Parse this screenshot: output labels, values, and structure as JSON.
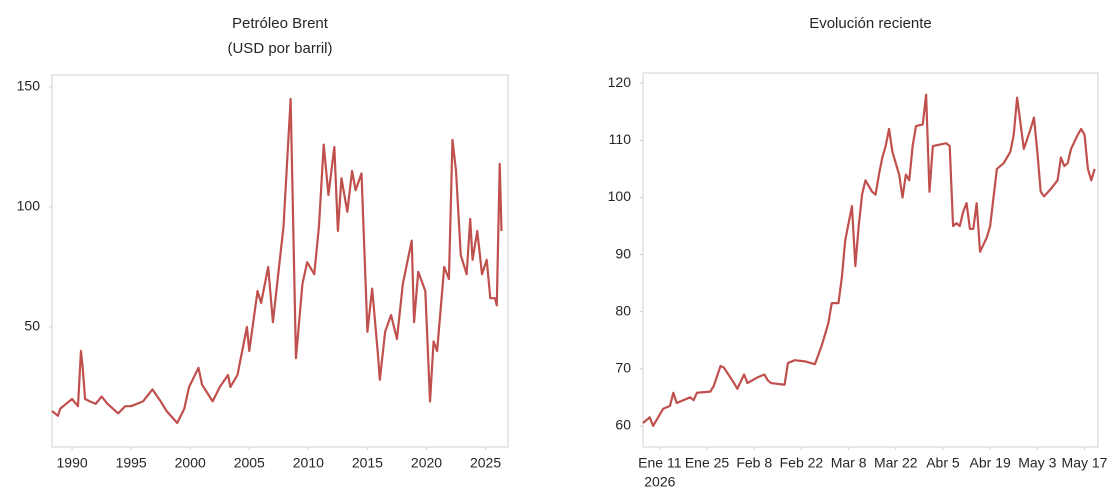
{
  "chart_data": [
    {
      "type": "line",
      "title": [
        "Petróleo Brent",
        "(USD por barril)"
      ],
      "x": [
        1988.3,
        1988.8,
        1989.0,
        1989.5,
        1990.0,
        1990.5,
        1990.75,
        1990.9,
        1991.1,
        1991.5,
        1992.0,
        1992.5,
        1993.0,
        1993.9,
        1994.5,
        1995.0,
        1996.0,
        1996.8,
        1997.5,
        1998.0,
        1998.9,
        1999.5,
        1999.9,
        2000.7,
        2001.0,
        2001.9,
        2002.5,
        2003.2,
        2003.4,
        2004.0,
        2004.8,
        2005.0,
        2005.7,
        2006.0,
        2006.6,
        2007.0,
        2007.9,
        2008.5,
        2008.95,
        2009.5,
        2009.9,
        2010.5,
        2010.9,
        2011.3,
        2011.7,
        2012.2,
        2012.5,
        2012.8,
        2013.3,
        2013.7,
        2014.0,
        2014.5,
        2015.0,
        2015.4,
        2015.9,
        2016.05,
        2016.5,
        2017.0,
        2017.5,
        2018.0,
        2018.75,
        2018.95,
        2019.3,
        2019.9,
        2020.3,
        2020.6,
        2020.9,
        2021.5,
        2021.9,
        2022.2,
        2022.5,
        2022.9,
        2023.4,
        2023.7,
        2023.9,
        2024.3,
        2024.7,
        2025.1,
        2025.4,
        2025.8,
        2025.95,
        2026.2,
        2026.35
      ],
      "series": [
        {
          "color": "#c0504d",
          "values": [
            15,
            13,
            16,
            18,
            20,
            17,
            40,
            33,
            20,
            19,
            18,
            21,
            18,
            14,
            17,
            17,
            19,
            24,
            19,
            15,
            10,
            16,
            25,
            33,
            26,
            19,
            25,
            30,
            25,
            30,
            50,
            40,
            65,
            60,
            75,
            52,
            92,
            145,
            37,
            68,
            77,
            72,
            92,
            126,
            105,
            125,
            90,
            112,
            98,
            115,
            107,
            114,
            48,
            66,
            38,
            28,
            48,
            55,
            45,
            68,
            86,
            52,
            73,
            65,
            19,
            44,
            40,
            75,
            70,
            128,
            115,
            80,
            72,
            95,
            78,
            90,
            72,
            78,
            62,
            62,
            59,
            118,
            90
          ]
        }
      ],
      "xlim": [
        1988.3,
        2026.9
      ],
      "xticks": [
        1990,
        1995,
        2000,
        2005,
        2010,
        2015,
        2020,
        2025
      ],
      "ylim": [
        0,
        155
      ],
      "yticks": [
        50,
        100,
        150
      ]
    },
    {
      "type": "line",
      "title": [
        "Evolución reciente"
      ],
      "x": [
        "2026-01-06",
        "2026-01-08",
        "2026-01-09",
        "2026-01-12",
        "2026-01-14",
        "2026-01-15",
        "2026-01-16",
        "2026-01-20",
        "2026-01-21",
        "2026-01-22",
        "2026-01-26",
        "2026-01-27",
        "2026-01-29",
        "2026-01-30",
        "2026-02-02",
        "2026-02-03",
        "2026-02-05",
        "2026-02-06",
        "2026-02-09",
        "2026-02-11",
        "2026-02-12",
        "2026-02-13",
        "2026-02-17",
        "2026-02-18",
        "2026-02-20",
        "2026-02-23",
        "2026-02-26",
        "2026-02-28",
        "2026-03-02",
        "2026-03-03",
        "2026-03-05",
        "2026-03-06",
        "2026-03-07",
        "2026-03-09",
        "2026-03-10",
        "2026-03-11",
        "2026-03-12",
        "2026-03-13",
        "2026-03-15",
        "2026-03-16",
        "2026-03-17",
        "2026-03-18",
        "2026-03-19",
        "2026-03-20",
        "2026-03-21",
        "2026-03-23",
        "2026-03-24",
        "2026-03-25",
        "2026-03-26",
        "2026-03-27",
        "2026-03-28",
        "2026-03-30",
        "2026-03-31",
        "2026-04-01",
        "2026-04-02",
        "2026-04-06",
        "2026-04-07",
        "2026-04-08",
        "2026-04-09",
        "2026-04-10",
        "2026-04-11",
        "2026-04-12",
        "2026-04-13",
        "2026-04-14",
        "2026-04-15",
        "2026-04-16",
        "2026-04-18",
        "2026-04-19",
        "2026-04-21",
        "2026-04-23",
        "2026-04-25",
        "2026-04-26",
        "2026-04-27",
        "2026-04-29",
        "2026-05-01",
        "2026-05-02",
        "2026-05-03",
        "2026-05-04",
        "2026-05-05",
        "2026-05-07",
        "2026-05-09",
        "2026-05-10",
        "2026-05-11",
        "2026-05-12",
        "2026-05-13",
        "2026-05-15",
        "2026-05-16",
        "2026-05-17",
        "2026-05-18",
        "2026-05-19",
        "2026-05-20"
      ],
      "series": [
        {
          "color": "#c0504d",
          "values": [
            60.5,
            61.5,
            60.0,
            63.0,
            63.5,
            65.8,
            64.0,
            65.0,
            64.5,
            65.8,
            66.0,
            67.0,
            70.5,
            70.2,
            67.5,
            66.5,
            69.0,
            67.5,
            68.5,
            69.0,
            68.0,
            67.5,
            67.2,
            71.0,
            71.5,
            71.3,
            70.8,
            74.0,
            78.0,
            81.5,
            81.5,
            86.0,
            92.5,
            98.5,
            88.0,
            95.0,
            100.5,
            103.0,
            101.0,
            100.5,
            104.0,
            107.0,
            109.0,
            112.0,
            108.0,
            104.0,
            100.0,
            104.0,
            103.0,
            109.0,
            112.5,
            112.8,
            118.0,
            101.0,
            109.0,
            109.5,
            109.0,
            95.0,
            95.5,
            95.0,
            97.5,
            99.0,
            94.5,
            94.5,
            99.0,
            90.5,
            93.0,
            95.0,
            105.0,
            106.0,
            108.0,
            111.0,
            117.5,
            108.5,
            112.0,
            114.0,
            108.0,
            101.0,
            100.2,
            101.5,
            103.0,
            107.0,
            105.5,
            106.0,
            108.5,
            111.0,
            112.0,
            111.0,
            105.0,
            103.0,
            105.0
          ]
        }
      ],
      "xlim": [
        "2026-01-06",
        "2026-05-21"
      ],
      "xticks": [
        {
          "value": "2026-01-11",
          "label": "Ene 11"
        },
        {
          "value": "2026-01-25",
          "label": "Ene 25"
        },
        {
          "value": "2026-02-08",
          "label": "Feb 8"
        },
        {
          "value": "2026-02-22",
          "label": "Feb 22"
        },
        {
          "value": "2026-03-08",
          "label": "Mar 8"
        },
        {
          "value": "2026-03-22",
          "label": "Mar 22"
        },
        {
          "value": "2026-04-05",
          "label": "Abr 5"
        },
        {
          "value": "2026-04-19",
          "label": "Abr 19"
        },
        {
          "value": "2026-05-03",
          "label": "May 3"
        },
        {
          "value": "2026-05-17",
          "label": "May 17"
        }
      ],
      "x_year_label": "2026",
      "ylim": [
        56.3,
        121.8
      ],
      "yticks": [
        60,
        70,
        80,
        90,
        100,
        110,
        120
      ]
    }
  ]
}
